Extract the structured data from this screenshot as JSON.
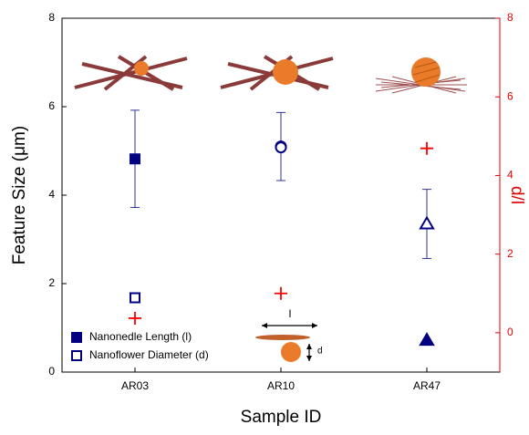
{
  "chart_data": {
    "type": "scatter",
    "xlabel": "Sample ID",
    "ylabel": "Feature Size (μm)",
    "y2label": "d/l",
    "categories": [
      "AR03",
      "AR10",
      "AR47"
    ],
    "markers": [
      "square",
      "circle",
      "triangle"
    ],
    "ylim": [
      0,
      8
    ],
    "yticks": [
      0,
      2,
      4,
      6,
      8
    ],
    "y2lim": [
      -1,
      8
    ],
    "y2ticks": [
      0,
      2,
      4,
      6,
      8
    ],
    "series": [
      {
        "name": "Nanonedle Length (l)",
        "color": "#000080",
        "filled": true,
        "values": [
          4.82,
          5.1,
          0.72
        ],
        "errors": [
          1.1,
          0.77,
          null
        ]
      },
      {
        "name": "Nanoflower Diameter (d)",
        "color": "#000080",
        "filled": false,
        "values": [
          1.68,
          5.08,
          3.35
        ],
        "errors": [
          null,
          null,
          0.78
        ]
      },
      {
        "color": "#ff0000",
        "axis": "y2",
        "marker": "plus",
        "values": [
          0.37,
          1.0,
          4.69
        ]
      }
    ],
    "annotations": [
      "l",
      "d"
    ],
    "axis_colors": {
      "y": "#000000",
      "y2": "#e00000"
    },
    "legend": "lower left"
  }
}
